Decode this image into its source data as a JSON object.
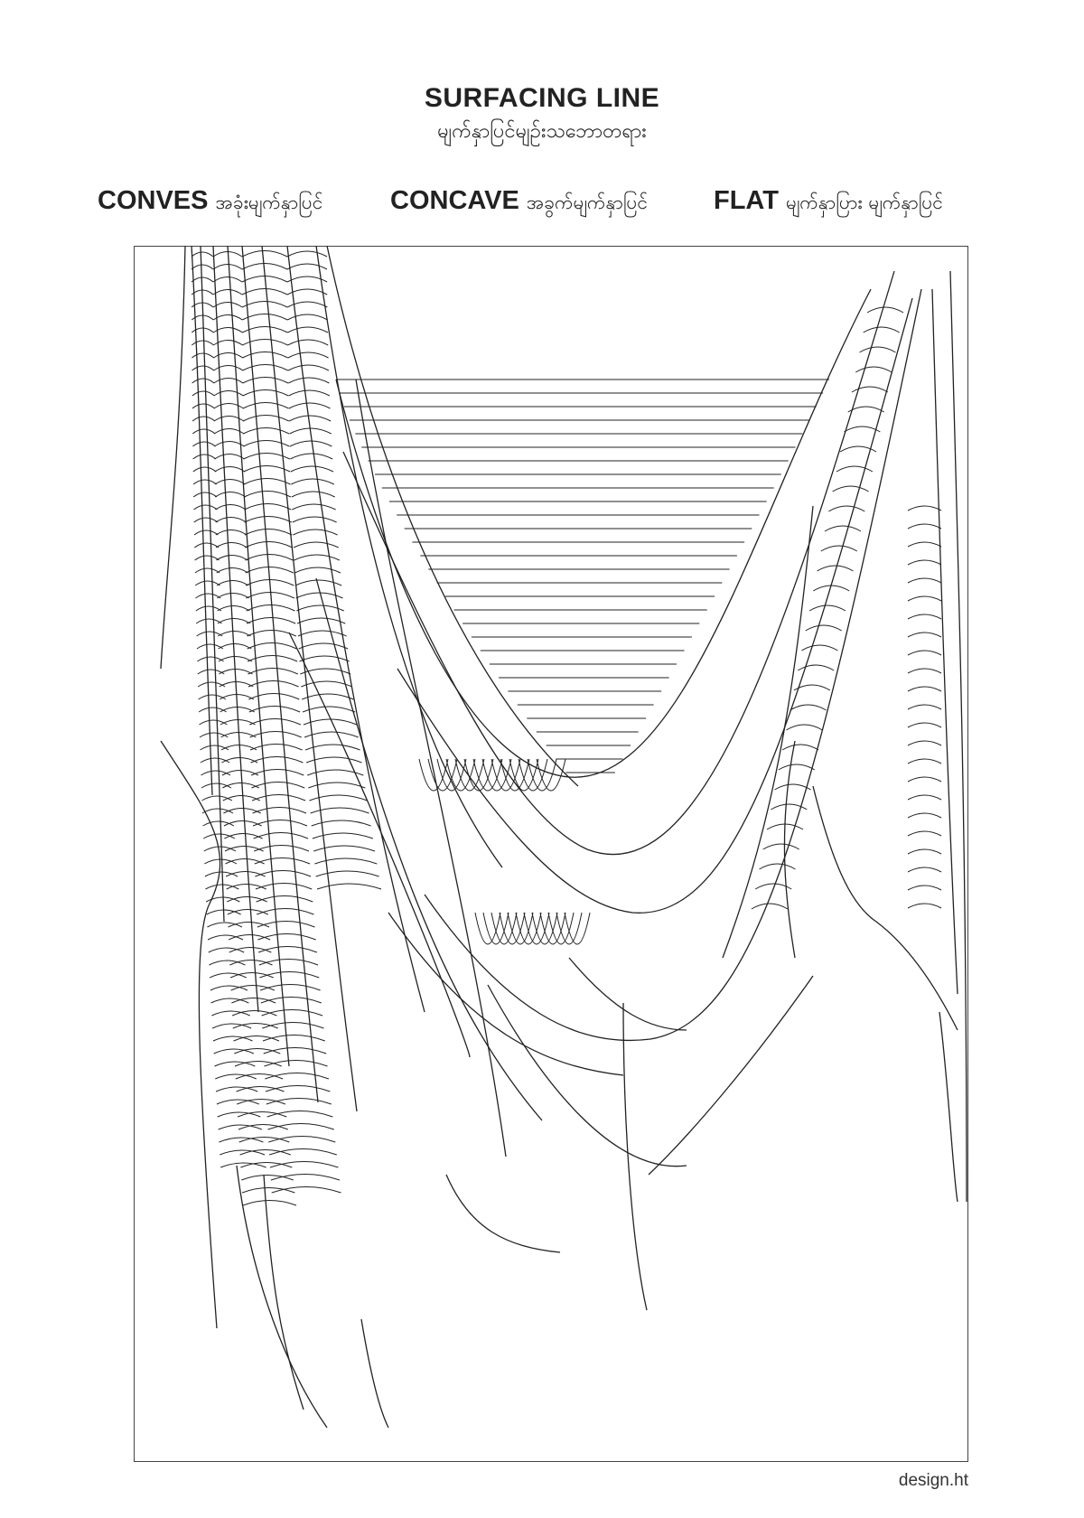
{
  "header": {
    "title": "SURFACING LINE",
    "subtitle": "မျက်နှာပြင်မျဉ်းသဘောတရား"
  },
  "legend": [
    {
      "key": "CONVES",
      "desc": "အခုံးမျက်နှာပြင်"
    },
    {
      "key": "CONCAVE",
      "desc": "အခွက်မျက်နှာပြင်"
    },
    {
      "key": "FLAT",
      "desc": "မျက်နှာပြား မျက်နှာပြင်"
    }
  ],
  "footer": {
    "credit": "design.ht"
  },
  "drawing": {
    "stroke_color": "#222222",
    "frame_color": "#444444"
  }
}
